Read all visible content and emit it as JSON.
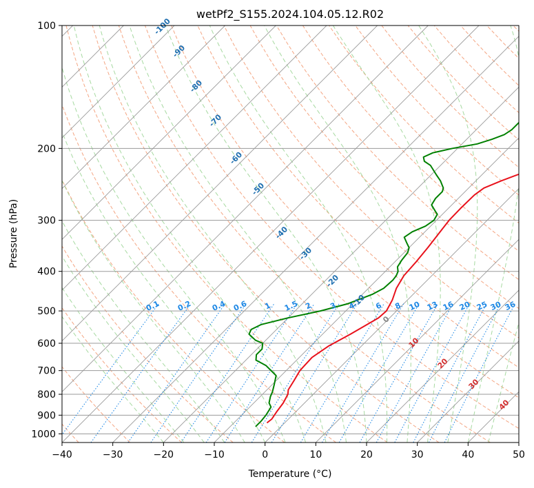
{
  "title": "wetPf2_S155.2024.104.05.12.R02",
  "chart_data": {
    "type": "line",
    "title": "wetPf2_S155.2024.104.05.12.R02",
    "xlabel": "Temperature (°C)",
    "ylabel": "Pressure (hPa)",
    "xlim": [
      -40,
      50
    ],
    "ylim": [
      1050,
      100
    ],
    "y_scale": "log",
    "x_ticks": [
      -40,
      -30,
      -20,
      -10,
      0,
      10,
      20,
      30,
      40,
      50
    ],
    "y_ticks": [
      100,
      200,
      300,
      400,
      500,
      600,
      700,
      800,
      900,
      1000
    ],
    "grid": true,
    "skew": 45,
    "series": [
      {
        "color": "#e8111b",
        "points": [
          [
            -3.5,
            940
          ],
          [
            -3.3,
            920
          ],
          [
            -3.8,
            880
          ],
          [
            -4.2,
            840
          ],
          [
            -5,
            800
          ],
          [
            -5.8,
            780
          ],
          [
            -6.5,
            740
          ],
          [
            -7.3,
            700
          ],
          [
            -7.5,
            650
          ],
          [
            -6.5,
            610
          ],
          [
            -4.5,
            570
          ],
          [
            -2.2,
            520
          ],
          [
            -2,
            500
          ],
          [
            -3,
            470
          ],
          [
            -4.5,
            440
          ],
          [
            -5.5,
            410
          ],
          [
            -5.8,
            380
          ],
          [
            -6.3,
            350
          ],
          [
            -7,
            320
          ],
          [
            -7.5,
            300
          ],
          [
            -7.6,
            280
          ],
          [
            -7.5,
            260
          ],
          [
            -7,
            250
          ],
          [
            -5,
            240
          ],
          [
            -2.5,
            230
          ],
          [
            0.5,
            220
          ],
          [
            3,
            210
          ],
          [
            6,
            200
          ],
          [
            8,
            190
          ],
          [
            10,
            180
          ],
          [
            12,
            170
          ],
          [
            14.5,
            160
          ],
          [
            16.5,
            150
          ],
          [
            18.5,
            140
          ],
          [
            20,
            130
          ],
          [
            21,
            125
          ],
          [
            21.2,
            120
          ],
          [
            21.5,
            115
          ],
          [
            22.5,
            110
          ],
          [
            24,
            105
          ],
          [
            25,
            100
          ]
        ]
      },
      {
        "color": "#008000",
        "points": [
          [
            -5,
            960
          ],
          [
            -5,
            930
          ],
          [
            -5.2,
            900
          ],
          [
            -5.8,
            860
          ],
          [
            -7,
            840
          ],
          [
            -8,
            810
          ],
          [
            -8.5,
            790
          ],
          [
            -9.5,
            760
          ],
          [
            -11,
            720
          ],
          [
            -15,
            680
          ],
          [
            -18,
            660
          ],
          [
            -19,
            640
          ],
          [
            -19,
            620
          ],
          [
            -20,
            600
          ],
          [
            -22,
            590
          ],
          [
            -24.5,
            570
          ],
          [
            -25,
            555
          ],
          [
            -24,
            540
          ],
          [
            -20,
            520
          ],
          [
            -15,
            500
          ],
          [
            -11,
            480
          ],
          [
            -8,
            455
          ],
          [
            -7,
            440
          ],
          [
            -6.8,
            420
          ],
          [
            -7,
            410
          ],
          [
            -7.5,
            400
          ],
          [
            -8.5,
            390
          ],
          [
            -9,
            375
          ],
          [
            -9.3,
            360
          ],
          [
            -10,
            350
          ],
          [
            -11.5,
            340
          ],
          [
            -13,
            330
          ],
          [
            -12.5,
            320
          ],
          [
            -11,
            310
          ],
          [
            -10.5,
            300
          ],
          [
            -11,
            290
          ],
          [
            -12,
            285
          ],
          [
            -14,
            275
          ],
          [
            -14.5,
            265
          ],
          [
            -14.5,
            255
          ],
          [
            -15,
            250
          ],
          [
            -17,
            240
          ],
          [
            -19,
            232
          ],
          [
            -22,
            220
          ],
          [
            -24,
            215
          ],
          [
            -25,
            210
          ],
          [
            -24,
            205
          ],
          [
            -21,
            200
          ],
          [
            -17,
            195
          ],
          [
            -15,
            190
          ],
          [
            -13.5,
            185
          ],
          [
            -13,
            180
          ],
          [
            -13,
            170
          ],
          [
            -14,
            160
          ],
          [
            -15,
            150
          ],
          [
            -15,
            140
          ],
          [
            -14.5,
            130
          ],
          [
            -14,
            125
          ],
          [
            -13.5,
            120
          ],
          [
            -12.5,
            115
          ],
          [
            -11,
            110
          ],
          [
            -10,
            105
          ],
          [
            -9,
            100
          ]
        ]
      }
    ],
    "dry_adiabat_labels": [
      "-100",
      "-90",
      "-80",
      "-70",
      "-60",
      "-50",
      "-40",
      "-30",
      "-20",
      "-10"
    ],
    "mixing_ratio_labels": [
      "0.1",
      "0.2",
      "0.4",
      "0.6",
      "1",
      "1.5",
      "2",
      "3",
      "4",
      "6",
      "8",
      "10",
      "13",
      "16",
      "20",
      "25",
      "30",
      "36"
    ],
    "moist_adiabat_labels": [
      "0",
      "10",
      "20",
      "30",
      "40"
    ],
    "colors": {
      "temperature": "#e8111b",
      "dewpoint": "#008000",
      "isotherm": "#9a9a9a",
      "isobar": "#9a9a9a",
      "dry_adiabat": "#f4a582",
      "moist_adiabat": "#a6d9a0",
      "mixing_ratio": "#1e88e5",
      "label_dry": "#1f6fb0",
      "label_mix": "#1e88e5",
      "label_moist": "#d32f2f"
    }
  }
}
